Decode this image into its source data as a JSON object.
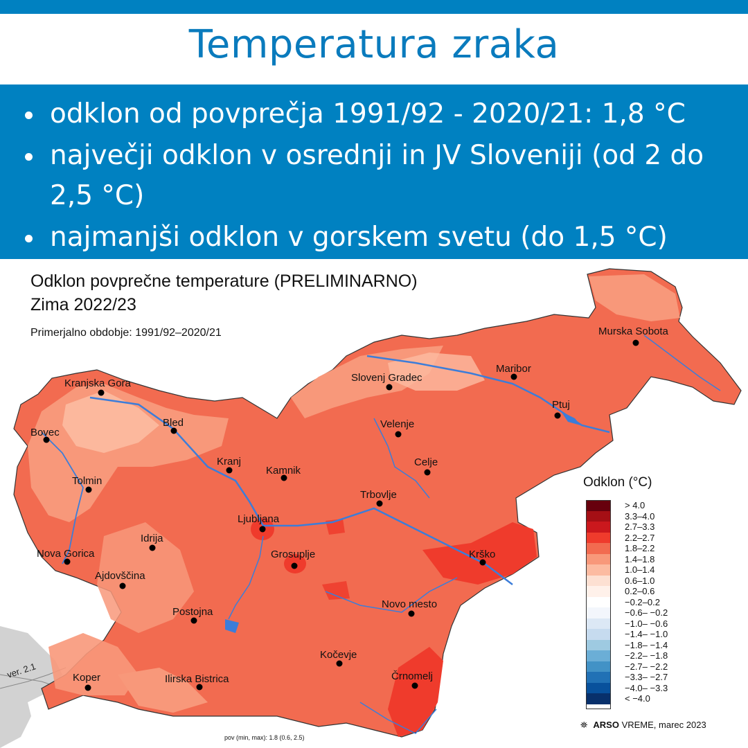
{
  "header": {
    "title": "Temperatura zraka"
  },
  "bullets": [
    "odklon od povprečja 1991/92 - 2020/21: 1,8 °C",
    "največji odklon v osrednji in JV Sloveniji (od 2 do 2,5 °C)",
    "najmanjši odklon v gorskem svetu (do 1,5 °C)"
  ],
  "map": {
    "title_line1": "Odklon povprečne temperature (PRELIMINARNO)",
    "title_line2": "Zima 2022/23",
    "subtitle": "Primerjalno obdobje: 1991/92–2020/21",
    "version": "ver. 2.1",
    "stat": "pov (min, max): 1.8 (0.6, 2.5)",
    "credit_brand": "ARSO",
    "credit_text": " VREME, marec 2023",
    "legend_title": "Odklon (°C)",
    "legend": [
      {
        "label": "> 4.0",
        "color": "#67000d"
      },
      {
        "label": "3.3–4.0",
        "color": "#a50f15"
      },
      {
        "label": "2.7–3.3",
        "color": "#cb181d"
      },
      {
        "label": "2.2–2.7",
        "color": "#ef3b2c"
      },
      {
        "label": "1.8–2.2",
        "color": "#f26b50"
      },
      {
        "label": "1.4–1.8",
        "color": "#f8987a"
      },
      {
        "label": "1.0–1.4",
        "color": "#fcbba1"
      },
      {
        "label": "0.6–1.0",
        "color": "#fde0d2"
      },
      {
        "label": "0.2–0.6",
        "color": "#fff1ea"
      },
      {
        "label": "−0.2–0.2",
        "color": "#ffffff"
      },
      {
        "label": "−0.6– −0.2",
        "color": "#f3f6fc"
      },
      {
        "label": "−1.0– −0.6",
        "color": "#dce8f5"
      },
      {
        "label": "−1.4– −1.0",
        "color": "#c6dbef"
      },
      {
        "label": "−1.8– −1.4",
        "color": "#9ecae1"
      },
      {
        "label": "−2.2– −1.8",
        "color": "#6baed6"
      },
      {
        "label": "−2.7– −2.2",
        "color": "#4292c6"
      },
      {
        "label": "−3.3– −2.7",
        "color": "#2171b5"
      },
      {
        "label": "−4.0– −3.3",
        "color": "#08519c"
      },
      {
        "label": "< −4.0",
        "color": "#08306b"
      }
    ],
    "cities": [
      {
        "name": "Murska Sobota"
      },
      {
        "name": "Maribor"
      },
      {
        "name": "Slovenj Gradec"
      },
      {
        "name": "Ptuj"
      },
      {
        "name": "Kranjska Gora"
      },
      {
        "name": "Velenje"
      },
      {
        "name": "Bled"
      },
      {
        "name": "Bovec"
      },
      {
        "name": "Celje"
      },
      {
        "name": "Kranj"
      },
      {
        "name": "Kamnik"
      },
      {
        "name": "Tolmin"
      },
      {
        "name": "Trbovlje"
      },
      {
        "name": "Ljubljana"
      },
      {
        "name": "Idrija"
      },
      {
        "name": "Krško"
      },
      {
        "name": "Nova Gorica"
      },
      {
        "name": "Grosuplje"
      },
      {
        "name": "Ajdovščina"
      },
      {
        "name": "Novo mesto"
      },
      {
        "name": "Postojna"
      },
      {
        "name": "Kočevje"
      },
      {
        "name": "Koper"
      },
      {
        "name": "Ilirska Bistrica"
      },
      {
        "name": "Črnomelj"
      }
    ]
  }
}
